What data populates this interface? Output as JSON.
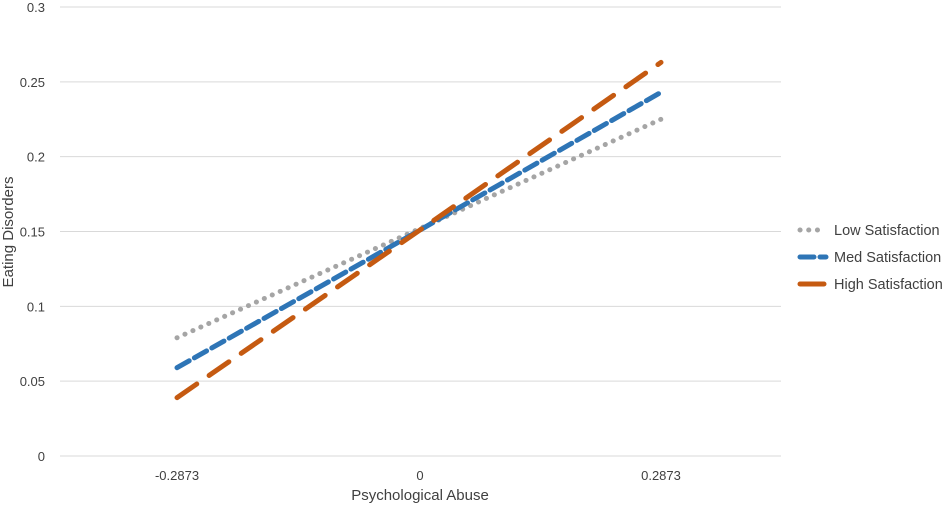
{
  "chart_data": {
    "type": "line",
    "title": "",
    "xlabel": "Psychological Abuse",
    "ylabel": "Eating Disorders",
    "categories": [
      "-0.2873",
      "0",
      "0.2873"
    ],
    "x": [
      -0.2873,
      0,
      0.2873
    ],
    "ylim": [
      0,
      0.3
    ],
    "y_ticks": [
      0,
      0.05,
      0.1,
      0.15,
      0.2,
      0.25,
      0.3
    ],
    "y_tick_labels": [
      "0",
      "0.05",
      "0.1",
      "0.15",
      "0.2",
      "0.25",
      "0.3"
    ],
    "grid": "horizontal",
    "legend_position": "right",
    "series": [
      {
        "name": "Low Satisfaction",
        "values": [
          0.079,
          0.152,
          0.225
        ],
        "color": "#a5a5a5",
        "style": "dotted"
      },
      {
        "name": "Med Satisfaction",
        "values": [
          0.059,
          0.151,
          0.243
        ],
        "color": "#2e75b6",
        "style": "dashed"
      },
      {
        "name": "High Satisfaction",
        "values": [
          0.039,
          0.151,
          0.263
        ],
        "color": "#c55a11",
        "style": "long-dashed"
      }
    ]
  }
}
